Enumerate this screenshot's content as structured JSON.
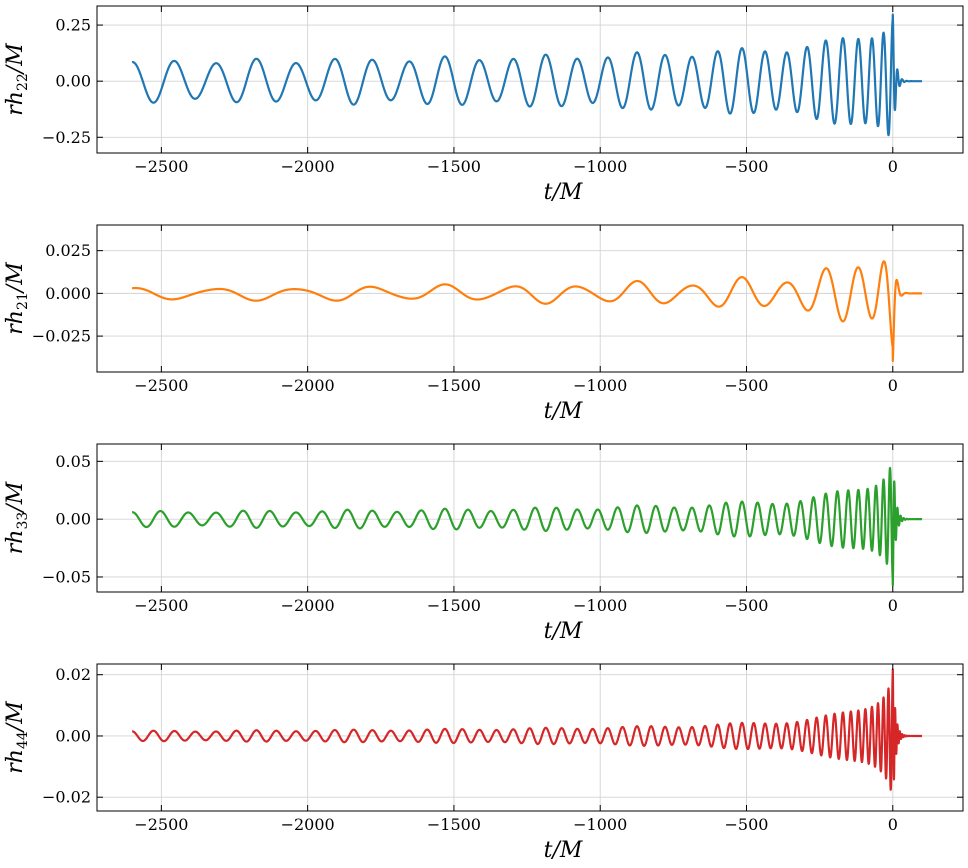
{
  "chart_data": [
    {
      "type": "line",
      "title": "",
      "xlabel": "t/M",
      "ylabel_base": "rh",
      "ylabel_sub": "22",
      "ylabel_tail": "/M",
      "xlim": [
        -2720,
        240
      ],
      "ylim": [
        -0.32,
        0.335
      ],
      "xticks": [
        -2500,
        -2000,
        -1500,
        -1000,
        -500,
        0
      ],
      "xtick_labels": [
        "−2500",
        "−2000",
        "−1500",
        "−1000",
        "−500",
        "0"
      ],
      "yticks": [
        -0.25,
        0.0,
        0.25
      ],
      "ytick_labels": [
        "−0.25",
        "0.00",
        "0.25"
      ],
      "grid": true,
      "color": "#1f77b4",
      "waveform": {
        "t_start": -2600,
        "t_merger": 0,
        "t_end": 100,
        "peak_amplitude": 0.3,
        "initial_amplitude": 0.085,
        "cycles": 27,
        "mode_m": 2,
        "modulation": 0.12
      }
    },
    {
      "type": "line",
      "title": "",
      "xlabel": "t/M",
      "ylabel_base": "rh",
      "ylabel_sub": "21",
      "ylabel_tail": "/M",
      "xlim": [
        -2720,
        240
      ],
      "ylim": [
        -0.046,
        0.04
      ],
      "xticks": [
        -2500,
        -2000,
        -1500,
        -1000,
        -500,
        0
      ],
      "xtick_labels": [
        "−2500",
        "−2000",
        "−1500",
        "−1000",
        "−500",
        "0"
      ],
      "yticks": [
        -0.025,
        0.0,
        0.025
      ],
      "ytick_labels": [
        "−0.025",
        "0.000",
        "0.025"
      ],
      "grid": true,
      "color": "#ff7f0e",
      "waveform": {
        "t_start": -2600,
        "t_merger": 0,
        "t_end": 100,
        "peak_amplitude": 0.04,
        "initial_amplitude": 0.003,
        "cycles": 13.5,
        "mode_m": 1,
        "modulation": 0.3
      }
    },
    {
      "type": "line",
      "title": "",
      "xlabel": "t/M",
      "ylabel_base": "rh",
      "ylabel_sub": "33",
      "ylabel_tail": "/M",
      "xlim": [
        -2720,
        240
      ],
      "ylim": [
        -0.063,
        0.065
      ],
      "xticks": [
        -2500,
        -2000,
        -1500,
        -1000,
        -500,
        0
      ],
      "xtick_labels": [
        "−2500",
        "−2000",
        "−1500",
        "−1000",
        "−500",
        "0"
      ],
      "yticks": [
        -0.05,
        0.0,
        0.05
      ],
      "ytick_labels": [
        "−0.05",
        "0.00",
        "0.05"
      ],
      "grid": true,
      "color": "#2ca02c",
      "waveform": {
        "t_start": -2600,
        "t_merger": 0,
        "t_end": 100,
        "peak_amplitude": 0.058,
        "initial_amplitude": 0.006,
        "cycles": 40.5,
        "mode_m": 3,
        "modulation": 0.15
      }
    },
    {
      "type": "line",
      "title": "",
      "xlabel": "t/M",
      "ylabel_base": "rh",
      "ylabel_sub": "44",
      "ylabel_tail": "/M",
      "xlim": [
        -2720,
        240
      ],
      "ylim": [
        -0.0245,
        0.0235
      ],
      "xticks": [
        -2500,
        -2000,
        -1500,
        -1000,
        -500,
        0
      ],
      "xtick_labels": [
        "−2500",
        "−2000",
        "−1500",
        "−1000",
        "−500",
        "0"
      ],
      "yticks": [
        -0.02,
        0.0,
        0.02
      ],
      "ytick_labels": [
        "−0.02",
        "0.00",
        "0.02"
      ],
      "grid": true,
      "color": "#d62728",
      "waveform": {
        "t_start": -2600,
        "t_merger": 0,
        "t_end": 100,
        "peak_amplitude": 0.022,
        "initial_amplitude": 0.0015,
        "cycles": 54,
        "mode_m": 4,
        "modulation": 0.12
      }
    }
  ]
}
